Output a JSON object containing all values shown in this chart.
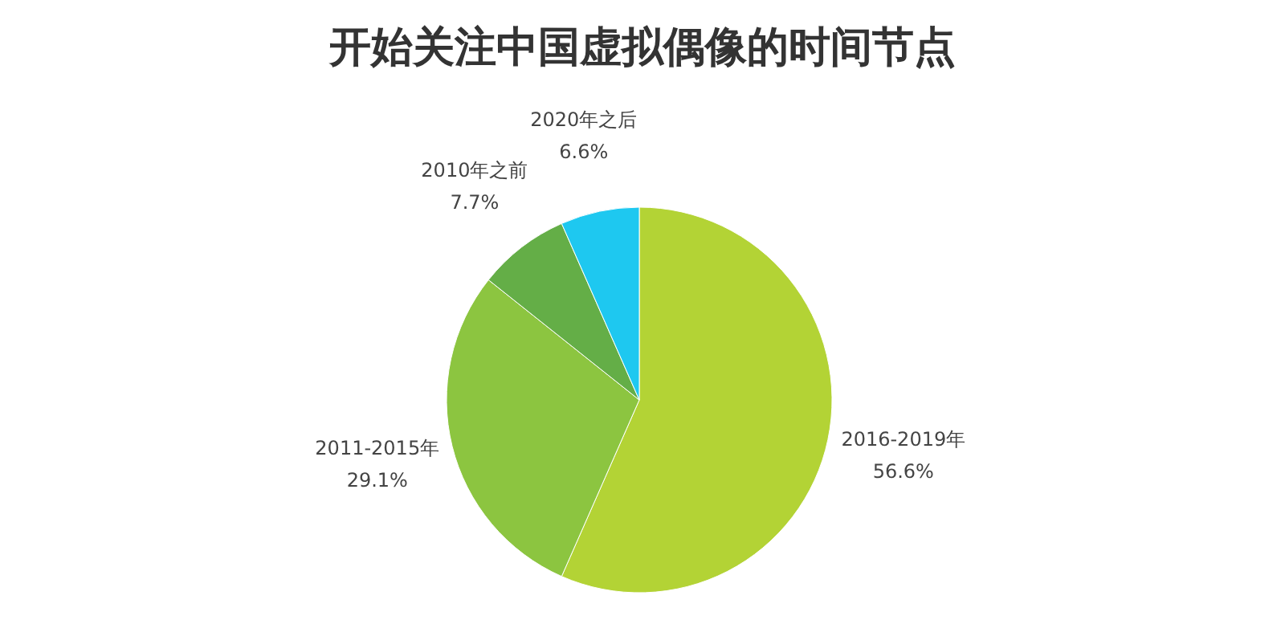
{
  "chart_data": {
    "type": "pie",
    "title": "开始关注中国虚拟偶像的时间节点",
    "categories": [
      "2016-2019年",
      "2011-2015年",
      "2010年之前",
      "2020年之后"
    ],
    "values": [
      56.6,
      29.1,
      7.7,
      6.6
    ],
    "value_labels": [
      "56.6%",
      "29.1%",
      "7.7%",
      "6.6%"
    ],
    "colors": [
      "#b3d335",
      "#8cc540",
      "#64ae47",
      "#1ec8f0"
    ]
  }
}
